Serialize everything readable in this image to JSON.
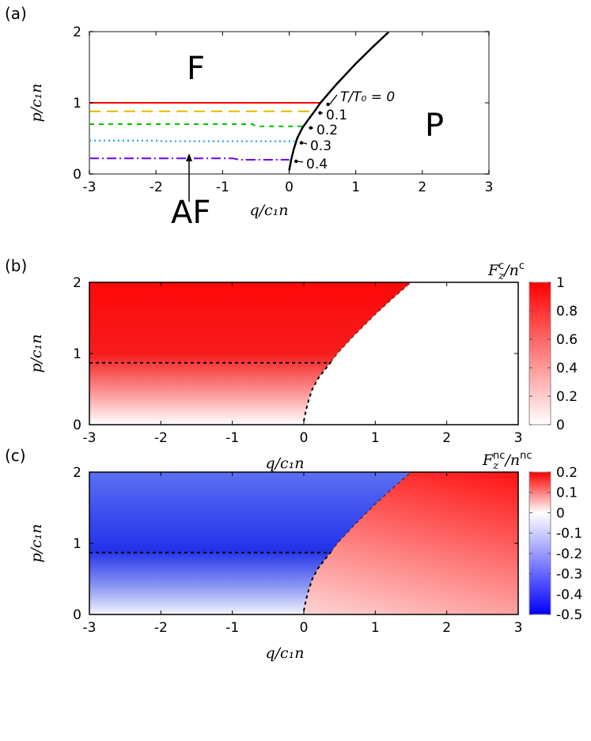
{
  "chart_data": [
    {
      "panel": "(a)",
      "type": "line",
      "xlabel": "q/c₁n",
      "ylabel": "p/c₁n",
      "xlim": [
        -3,
        3
      ],
      "ylim": [
        0,
        2
      ],
      "xticks": [
        "-3",
        "-2",
        "-1",
        "0",
        "1",
        "2",
        "3"
      ],
      "yticks": [
        "0",
        "1",
        "2"
      ],
      "grid": false,
      "region_labels": {
        "F": "F",
        "P": "P",
        "AF": "AF"
      },
      "boundary": {
        "x": [
          0,
          0.03,
          0.07,
          0.12,
          0.2,
          0.3,
          0.38,
          0.47,
          0.7,
          1.0,
          1.25,
          1.5
        ],
        "y": [
          0.05,
          0.2,
          0.35,
          0.5,
          0.65,
          0.78,
          0.88,
          1.0,
          1.25,
          1.55,
          1.78,
          2.0
        ],
        "color": "#000000"
      },
      "series": [
        {
          "name": "T/T₀ = 0",
          "label": "T/T₀ = 0",
          "color": "#ff0000",
          "dash": "solid",
          "x": [
            -3,
            0.47
          ],
          "y": [
            1.0,
            1.0
          ]
        },
        {
          "name": "0.1",
          "label": "0.1",
          "color": "#e6b800",
          "dash": "dashed",
          "x": [
            -3,
            0.37
          ],
          "y": [
            0.88,
            0.88
          ]
        },
        {
          "name": "0.2",
          "label": "0.2",
          "color": "#00c000",
          "dash": "short-dashed",
          "x": [
            -3,
            -0.55,
            -0.5,
            0.22
          ],
          "y": [
            0.7,
            0.7,
            0.67,
            0.67
          ]
        },
        {
          "name": "0.3",
          "label": "0.3",
          "color": "#0099ff",
          "dash": "dotted",
          "x": [
            -3,
            -1.95,
            -1.9,
            0.08
          ],
          "y": [
            0.47,
            0.47,
            0.46,
            0.46
          ]
        },
        {
          "name": "0.4",
          "label": "0.4",
          "color": "#6600ff",
          "dash": "dash-dot",
          "x": [
            -3,
            -0.85,
            -0.75,
            0.0
          ],
          "y": [
            0.22,
            0.22,
            0.2,
            0.2
          ]
        }
      ]
    },
    {
      "panel": "(b)",
      "type": "heatmap",
      "xlabel": "q/c₁n",
      "ylabel": "p/c₁n",
      "xlim": [
        -3,
        3
      ],
      "ylim": [
        0,
        2
      ],
      "xticks": [
        "-3",
        "-2",
        "-1",
        "0",
        "1",
        "2",
        "3"
      ],
      "yticks": [
        "0",
        "1",
        "2"
      ],
      "colorbar": {
        "label": {
          "base": "F",
          "sub": "z",
          "sup": "c",
          "den": "n",
          "densup": "c"
        },
        "range": [
          0,
          1
        ],
        "ticks": [
          "0",
          "0.2",
          "0.4",
          "0.6",
          "0.8",
          "1"
        ],
        "colors": [
          "#ffffff",
          "#ff0000"
        ]
      },
      "dashed_line_p": 0.87,
      "dashed_line_q_range": [
        -3,
        0.35
      ]
    },
    {
      "panel": "(c)",
      "type": "heatmap",
      "xlabel": "q/c₁n",
      "ylabel": "p/c₁n",
      "xlim": [
        -3,
        3
      ],
      "ylim": [
        0,
        2
      ],
      "xticks": [
        "-3",
        "-2",
        "-1",
        "0",
        "1",
        "2",
        "3"
      ],
      "yticks": [
        "0",
        "1",
        "2"
      ],
      "colorbar": {
        "label": {
          "base": "F",
          "sub": "z",
          "sup": "nc",
          "den": "n",
          "densup": "nc"
        },
        "range": [
          -0.5,
          0.2
        ],
        "ticks": [
          "-0.5",
          "-0.4",
          "-0.3",
          "-0.2",
          "-0.1",
          "0",
          "0.1",
          "0.2"
        ],
        "colors": [
          "#0000ff",
          "#ffffff",
          "#ff0000"
        ]
      },
      "dashed_line_p": 0.87,
      "dashed_line_q_range": [
        -3,
        0.35
      ]
    }
  ]
}
